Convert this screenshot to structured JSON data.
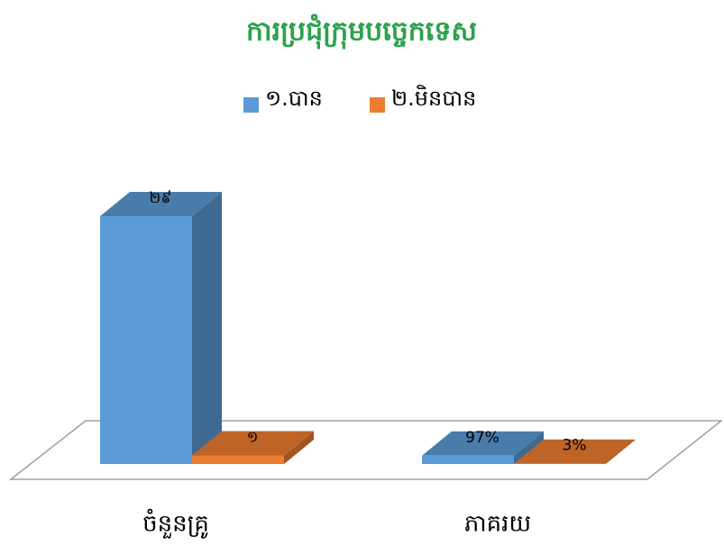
{
  "chart_data": {
    "type": "bar3d",
    "title": "ការប្រជុំក្រុមបច្ចេកទេស",
    "categories": [
      "ចំនួនគ្រូ",
      "ភាគរយ"
    ],
    "series": [
      {
        "name": "១.បាន",
        "color": "#5b9bd5",
        "values": [
          29,
          0.97
        ],
        "value_labels": [
          "២៩",
          "97%"
        ]
      },
      {
        "name": "២.មិនបាន",
        "color": "#ed7d31",
        "values": [
          1,
          0.03
        ],
        "value_labels": [
          "១",
          "3%"
        ]
      }
    ],
    "legend": "top"
  }
}
